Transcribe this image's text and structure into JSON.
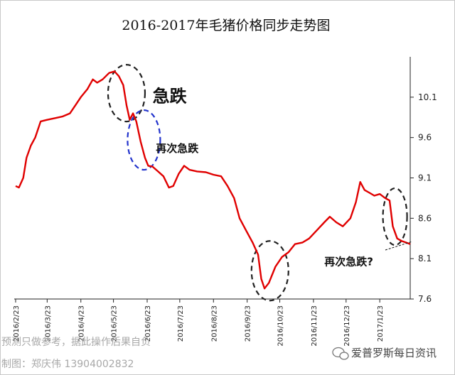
{
  "chart_data": {
    "type": "line",
    "title": "2016-2017年毛猪价格同步走势图",
    "xlabel": "",
    "ylabel": "",
    "ylim": [
      7.6,
      10.6
    ],
    "yticks": [
      "10.1",
      "9.6",
      "9.1",
      "8.6",
      "8.1",
      "7.6"
    ],
    "xticks": [
      "2016/2/23",
      "2016/3/23",
      "2016/4/23",
      "2016/5/23",
      "2016/6/23",
      "2016/7/23",
      "2016/8/23",
      "2016/9/23",
      "2016/10/23",
      "2016/11/23",
      "2016/12/23",
      "2017/1/23"
    ],
    "grid": false,
    "legend": "none",
    "series_color": "#e00000",
    "series": [
      {
        "values": [
          [
            "2016-02-23",
            9.0
          ],
          [
            "2016-02-26",
            8.98
          ],
          [
            "2016-03-01",
            9.1
          ],
          [
            "2016-03-04",
            9.35
          ],
          [
            "2016-03-08",
            9.5
          ],
          [
            "2016-03-12",
            9.6
          ],
          [
            "2016-03-17",
            9.8
          ],
          [
            "2016-03-23",
            9.82
          ],
          [
            "2016-03-30",
            9.84
          ],
          [
            "2016-04-06",
            9.86
          ],
          [
            "2016-04-13",
            9.9
          ],
          [
            "2016-04-18",
            10.0
          ],
          [
            "2016-04-23",
            10.1
          ],
          [
            "2016-04-29",
            10.2
          ],
          [
            "2016-05-04",
            10.32
          ],
          [
            "2016-05-08",
            10.28
          ],
          [
            "2016-05-13",
            10.32
          ],
          [
            "2016-05-19",
            10.4
          ],
          [
            "2016-05-24",
            10.42
          ],
          [
            "2016-05-28",
            10.36
          ],
          [
            "2016-06-01",
            10.25
          ],
          [
            "2016-06-04",
            10.0
          ],
          [
            "2016-06-07",
            9.82
          ],
          [
            "2016-06-10",
            9.9
          ],
          [
            "2016-06-13",
            9.8
          ],
          [
            "2016-06-17",
            9.55
          ],
          [
            "2016-06-21",
            9.35
          ],
          [
            "2016-06-24",
            9.25
          ],
          [
            "2016-06-28",
            9.24
          ],
          [
            "2016-07-03",
            9.18
          ],
          [
            "2016-07-08",
            9.12
          ],
          [
            "2016-07-13",
            8.98
          ],
          [
            "2016-07-17",
            9.0
          ],
          [
            "2016-07-22",
            9.15
          ],
          [
            "2016-07-27",
            9.25
          ],
          [
            "2016-08-01",
            9.2
          ],
          [
            "2016-08-08",
            9.18
          ],
          [
            "2016-08-16",
            9.17
          ],
          [
            "2016-08-23",
            9.14
          ],
          [
            "2016-08-30",
            9.12
          ],
          [
            "2016-09-05",
            9.0
          ],
          [
            "2016-09-11",
            8.85
          ],
          [
            "2016-09-16",
            8.6
          ],
          [
            "2016-09-22",
            8.45
          ],
          [
            "2016-09-28",
            8.3
          ],
          [
            "2016-10-03",
            8.15
          ],
          [
            "2016-10-06",
            7.85
          ],
          [
            "2016-10-09",
            7.73
          ],
          [
            "2016-10-13",
            7.8
          ],
          [
            "2016-10-19",
            8.0
          ],
          [
            "2016-10-25",
            8.12
          ],
          [
            "2016-10-31",
            8.18
          ],
          [
            "2016-11-06",
            8.28
          ],
          [
            "2016-11-13",
            8.3
          ],
          [
            "2016-11-19",
            8.35
          ],
          [
            "2016-11-26",
            8.45
          ],
          [
            "2016-12-03",
            8.55
          ],
          [
            "2016-12-08",
            8.62
          ],
          [
            "2016-12-14",
            8.55
          ],
          [
            "2016-12-20",
            8.5
          ],
          [
            "2016-12-27",
            8.6
          ],
          [
            "2017-01-01",
            8.8
          ],
          [
            "2017-01-05",
            9.05
          ],
          [
            "2017-01-09",
            8.95
          ],
          [
            "2017-01-13",
            8.92
          ],
          [
            "2017-01-18",
            8.88
          ],
          [
            "2017-01-23",
            8.9
          ],
          [
            "2017-01-28",
            8.85
          ],
          [
            "2017-02-01",
            8.82
          ],
          [
            "2017-02-04",
            8.5
          ],
          [
            "2017-02-08",
            8.35
          ],
          [
            "2017-02-12",
            8.32
          ],
          [
            "2017-02-16",
            8.3
          ],
          [
            "2017-02-20",
            8.28
          ]
        ]
      }
    ],
    "annotations": [
      {
        "text": "急跌",
        "date": "2016-06-28",
        "value": 10.04,
        "size": "large"
      },
      {
        "text": "再次急跌",
        "date": "2016-07-01",
        "value": 9.42,
        "size": "medium"
      },
      {
        "text": "再次急跌?",
        "date": "2016-12-03",
        "value": 8.02,
        "size": "medium"
      }
    ],
    "highlight_ellipses": [
      {
        "center_date": "2016-06-04",
        "center_value": 10.15,
        "color": "#222222"
      },
      {
        "center_date": "2016-06-20",
        "center_value": 9.57,
        "color": "#2233cc"
      },
      {
        "center_date": "2016-10-14",
        "center_value": 7.95,
        "color": "#222222"
      },
      {
        "center_date": "2017-02-06",
        "center_value": 8.62,
        "color": "#222222"
      }
    ]
  },
  "watermark": {
    "disclaimer": "预测只做参考，据此操作后果自负",
    "author": "制图：郑庆伟    13904002832",
    "brand": "爱普罗斯每日资讯"
  }
}
